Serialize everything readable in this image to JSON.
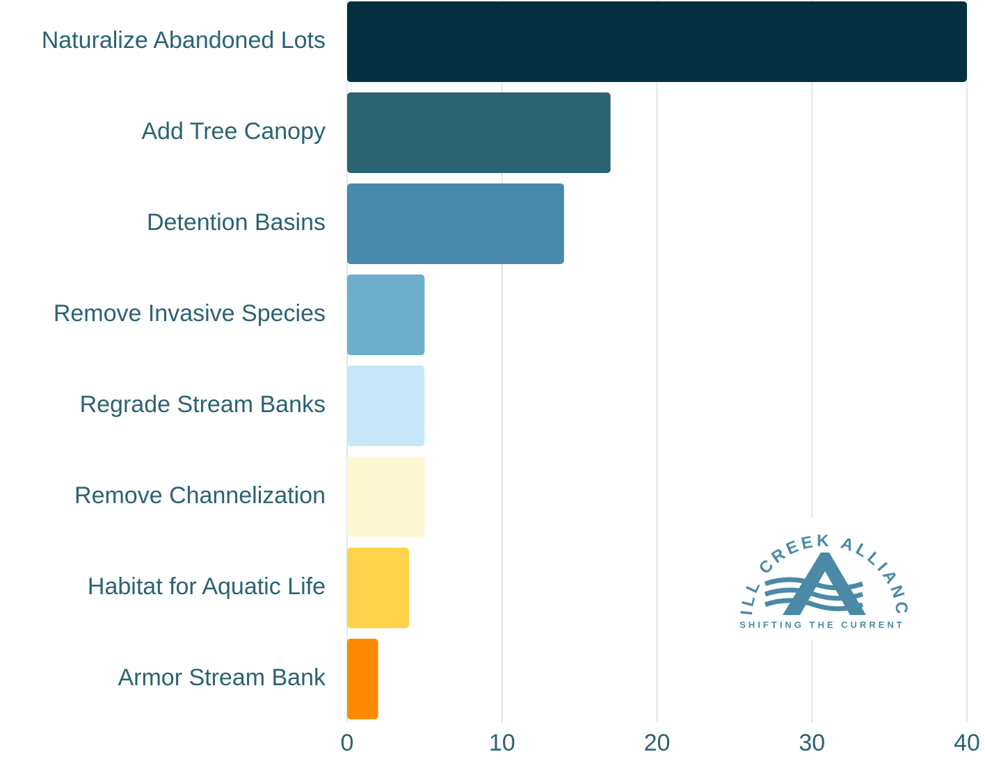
{
  "chart_data": {
    "type": "hbar",
    "categories": [
      "Naturalize Abandoned Lots",
      "Add Tree Canopy",
      "Detention Basins",
      "Remove Invasive Species",
      "Regrade Stream Banks",
      "Remove Channelization",
      "Habitat for Aquatic Life",
      "Armor Stream Bank"
    ],
    "values": [
      40,
      17,
      14,
      5,
      5,
      5,
      4,
      2
    ],
    "colors": [
      "#02303e",
      "#2b6274",
      "#478aa9",
      "#6daeca",
      "#c6e7f7",
      "#fdf8d2",
      "#fed349",
      "#fd8a02"
    ],
    "xlim": [
      0,
      40
    ],
    "xticks": [
      0,
      10,
      20,
      30,
      40
    ],
    "grid": true
  },
  "logo": {
    "name": "MILL CREEK ALLIANCE",
    "tagline": "SHIFTING THE CURRENT"
  }
}
